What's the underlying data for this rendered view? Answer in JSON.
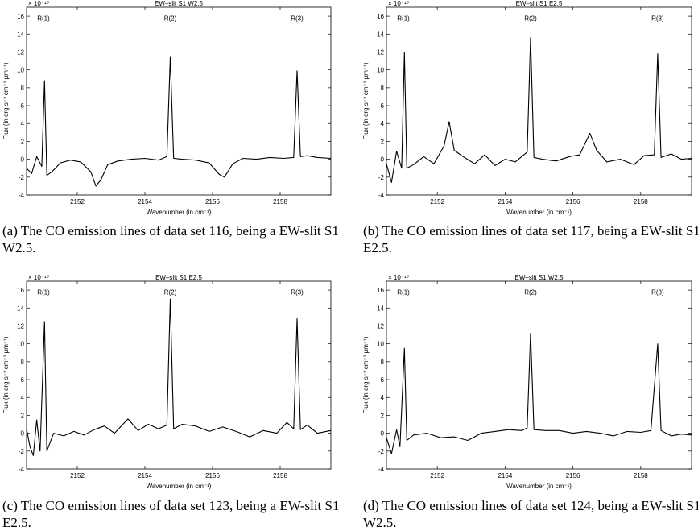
{
  "chart_data": [
    {
      "type": "line",
      "title": "EW–slit S1 W2.5",
      "xlabel": "Wavenumber (in cm⁻¹)",
      "ylabel": "Flux (in erg s⁻¹ cm⁻² μm⁻¹)",
      "y_multiplier": "× 10⁻¹⁰",
      "xlim": [
        2150.5,
        2159.5
      ],
      "ylim": [
        -4,
        17
      ],
      "xticks": [
        "2152",
        "2154",
        "2156",
        "2158"
      ],
      "yticks": [
        "-4",
        "-2",
        "0",
        "2",
        "4",
        "6",
        "8",
        "10",
        "12",
        "14",
        "16"
      ],
      "annotations": [
        {
          "text": "R(1)",
          "x": 2151.0,
          "y": 15.8
        },
        {
          "text": "R(2)",
          "x": 2154.75,
          "y": 15.8
        },
        {
          "text": "R(3)",
          "x": 2158.5,
          "y": 15.8
        }
      ],
      "series": [
        {
          "x": [
            2150.5,
            2150.65,
            2150.8,
            2150.95,
            2151.03,
            2151.1,
            2151.25,
            2151.5,
            2151.8,
            2152.1,
            2152.4,
            2152.55,
            2152.7,
            2152.9,
            2153.2,
            2153.6,
            2154.0,
            2154.4,
            2154.65,
            2154.75,
            2154.85,
            2155.1,
            2155.5,
            2155.9,
            2156.2,
            2156.35,
            2156.6,
            2156.9,
            2157.3,
            2157.7,
            2158.1,
            2158.4,
            2158.5,
            2158.6,
            2158.8,
            2159.1,
            2159.5
          ],
          "values": [
            -1.0,
            -1.6,
            0.3,
            -0.8,
            8.8,
            -1.8,
            -1.4,
            -0.4,
            -0.1,
            -0.3,
            -1.4,
            -3.0,
            -2.3,
            -0.6,
            -0.2,
            0.0,
            0.1,
            -0.1,
            0.3,
            11.4,
            0.1,
            0.0,
            -0.1,
            -0.4,
            -1.7,
            -2.0,
            -0.5,
            0.1,
            0.0,
            0.2,
            0.1,
            0.2,
            9.9,
            0.3,
            0.4,
            0.2,
            0.1
          ]
        }
      ]
    },
    {
      "type": "line",
      "title": "EW–slit S1  E2.5",
      "xlabel": "Wavenumber (in cm⁻¹)",
      "ylabel": "Flux (in erg s⁻¹ cm⁻² μm⁻¹)",
      "y_multiplier": "× 10⁻¹⁰",
      "xlim": [
        2150.5,
        2159.5
      ],
      "ylim": [
        -4,
        17
      ],
      "xticks": [
        "2152",
        "2154",
        "2156",
        "2158"
      ],
      "yticks": [
        "-4",
        "-2",
        "0",
        "2",
        "4",
        "6",
        "8",
        "10",
        "12",
        "14",
        "16"
      ],
      "annotations": [
        {
          "text": "R(1)",
          "x": 2151.0,
          "y": 15.8
        },
        {
          "text": "R(2)",
          "x": 2154.75,
          "y": 15.8
        },
        {
          "text": "R(3)",
          "x": 2158.5,
          "y": 15.8
        }
      ],
      "series": [
        {
          "x": [
            2150.5,
            2150.65,
            2150.8,
            2150.95,
            2151.03,
            2151.1,
            2151.3,
            2151.6,
            2151.9,
            2152.2,
            2152.35,
            2152.5,
            2152.8,
            2153.1,
            2153.4,
            2153.7,
            2154.0,
            2154.3,
            2154.65,
            2154.75,
            2154.85,
            2155.1,
            2155.5,
            2155.9,
            2156.2,
            2156.5,
            2156.7,
            2157.0,
            2157.4,
            2157.8,
            2158.1,
            2158.4,
            2158.5,
            2158.6,
            2158.9,
            2159.2,
            2159.5
          ],
          "values": [
            -0.5,
            -2.6,
            0.9,
            -1.0,
            12.0,
            -1.0,
            -0.6,
            0.3,
            -0.5,
            1.5,
            4.2,
            1.0,
            0.2,
            -0.5,
            0.5,
            -0.7,
            0.0,
            -0.3,
            0.8,
            13.6,
            0.2,
            0.0,
            -0.2,
            0.3,
            0.5,
            2.9,
            1.0,
            -0.3,
            0.0,
            -0.6,
            0.4,
            0.5,
            11.8,
            0.2,
            0.6,
            0.0,
            0.1
          ]
        }
      ]
    },
    {
      "type": "line",
      "title": "EW–slit S1 E2.5",
      "xlabel": "Wavenumber (in cm⁻¹)",
      "ylabel": "Flux (in erg s⁻¹ cm⁻² μm⁻¹)",
      "y_multiplier": "× 10⁻¹⁰",
      "xlim": [
        2150.5,
        2159.5
      ],
      "ylim": [
        -4,
        17
      ],
      "xticks": [
        "2152",
        "2154",
        "2156",
        "2158"
      ],
      "yticks": [
        "-4",
        "-2",
        "0",
        "2",
        "4",
        "6",
        "8",
        "10",
        "12",
        "14",
        "16"
      ],
      "annotations": [
        {
          "text": "R(1)",
          "x": 2151.0,
          "y": 15.8
        },
        {
          "text": "R(2)",
          "x": 2154.75,
          "y": 15.8
        },
        {
          "text": "R(3)",
          "x": 2158.5,
          "y": 15.8
        }
      ],
      "series": [
        {
          "x": [
            2150.5,
            2150.6,
            2150.7,
            2150.8,
            2150.9,
            2151.03,
            2151.1,
            2151.3,
            2151.6,
            2151.9,
            2152.2,
            2152.5,
            2152.8,
            2153.1,
            2153.5,
            2153.8,
            2154.1,
            2154.4,
            2154.65,
            2154.75,
            2154.85,
            2155.1,
            2155.5,
            2155.9,
            2156.3,
            2156.7,
            2157.1,
            2157.5,
            2157.9,
            2158.2,
            2158.4,
            2158.5,
            2158.6,
            2158.8,
            2159.1,
            2159.5
          ],
          "values": [
            0.5,
            -1.5,
            -2.5,
            1.5,
            -2.0,
            12.5,
            -2.0,
            0.0,
            -0.3,
            0.2,
            -0.2,
            0.4,
            0.8,
            0.0,
            1.6,
            0.3,
            1.0,
            0.5,
            0.9,
            15.0,
            0.5,
            1.0,
            0.8,
            0.2,
            0.7,
            0.2,
            -0.4,
            0.3,
            0.0,
            1.2,
            0.5,
            12.8,
            0.4,
            0.9,
            0.0,
            0.3
          ]
        }
      ]
    },
    {
      "type": "line",
      "title": "EW–slit S1 W2.5",
      "xlabel": "Wavenumber (in cm⁻¹)",
      "ylabel": "Flux (in erg s⁻¹ cm⁻² μm⁻¹)",
      "y_multiplier": "× 10⁻¹⁰",
      "xlim": [
        2150.5,
        2159.5
      ],
      "ylim": [
        -4,
        17
      ],
      "xticks": [
        "2152",
        "2154",
        "2156",
        "2158"
      ],
      "yticks": [
        "-4",
        "-2",
        "0",
        "2",
        "4",
        "6",
        "8",
        "10",
        "12",
        "14",
        "16"
      ],
      "annotations": [
        {
          "text": "R(1)",
          "x": 2151.0,
          "y": 15.8
        },
        {
          "text": "R(2)",
          "x": 2154.75,
          "y": 15.8
        },
        {
          "text": "R(3)",
          "x": 2158.5,
          "y": 15.8
        }
      ],
      "series": [
        {
          "x": [
            2150.5,
            2150.65,
            2150.8,
            2150.9,
            2151.03,
            2151.1,
            2151.3,
            2151.7,
            2152.1,
            2152.5,
            2152.9,
            2153.3,
            2153.7,
            2154.1,
            2154.5,
            2154.65,
            2154.75,
            2154.85,
            2155.2,
            2155.6,
            2156.0,
            2156.4,
            2156.8,
            2157.2,
            2157.6,
            2158.0,
            2158.3,
            2158.5,
            2158.6,
            2158.9,
            2159.2,
            2159.5
          ],
          "values": [
            -0.5,
            -2.3,
            0.4,
            -1.5,
            9.5,
            -0.8,
            -0.2,
            0.0,
            -0.5,
            -0.4,
            -0.8,
            0.0,
            0.2,
            0.4,
            0.3,
            0.6,
            11.2,
            0.4,
            0.3,
            0.3,
            0.0,
            0.2,
            0.0,
            -0.3,
            0.2,
            0.1,
            0.3,
            10.0,
            0.3,
            -0.3,
            -0.1,
            -0.2
          ]
        }
      ]
    }
  ],
  "captions": [
    "(a) The CO emission lines of data set 116, being a EW-slit S1 W2.5.",
    "(b) The CO emission lines of data set 117, being a EW-slit S1 E2.5.",
    "(c) The CO emission lines of data set 123, being a EW-slit S1 E2.5.",
    "(d) The CO emission lines of data set 124, being a EW-slit S1 W2.5."
  ]
}
